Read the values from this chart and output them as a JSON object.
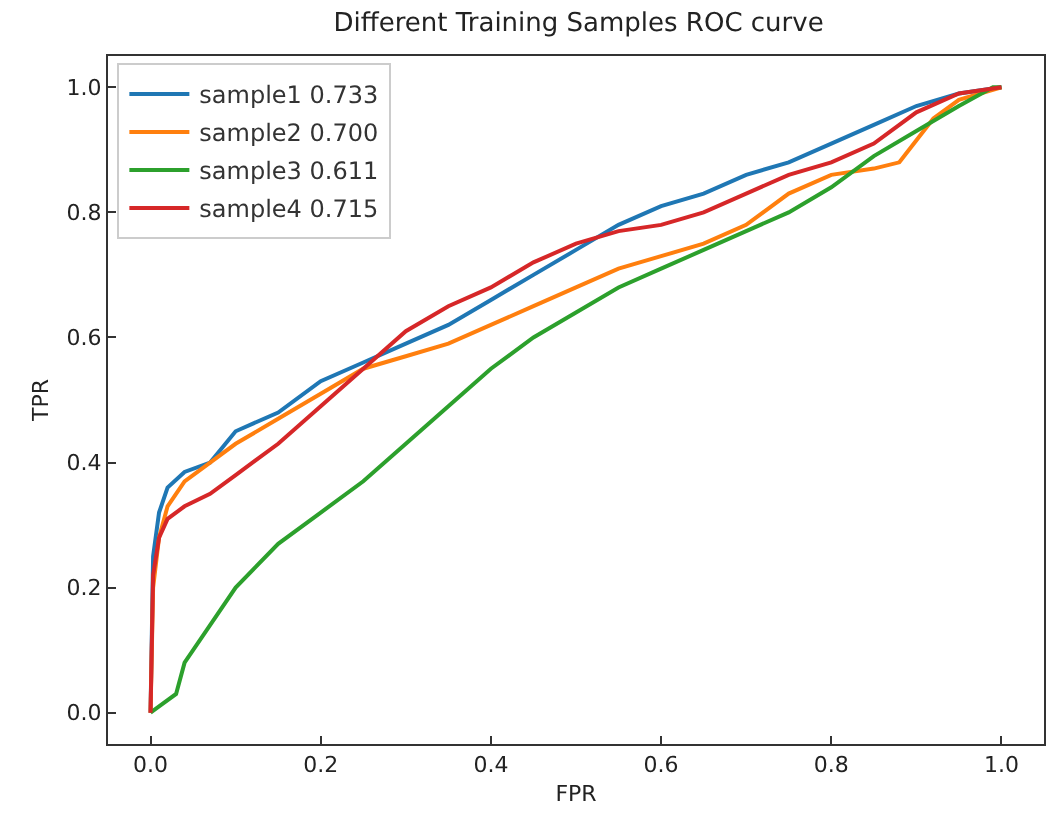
{
  "chart_data": {
    "type": "line",
    "title": "Different Training Samples ROC curve",
    "xlabel": "FPR",
    "ylabel": "TPR",
    "xlim": [
      -0.05,
      1.05
    ],
    "ylim": [
      -0.05,
      1.05
    ],
    "xticks": [
      {
        "value": 0,
        "label": "0.0"
      },
      0.2,
      0.4,
      0.6,
      0.8,
      {
        "value": 1,
        "label": "1.0"
      }
    ],
    "yticks": [
      {
        "value": 0,
        "label": "0.0"
      },
      0.2,
      0.4,
      0.6,
      0.8,
      {
        "value": 1,
        "label": "1.0"
      }
    ],
    "grid": false,
    "legend": "top left",
    "marker": "none",
    "line_style": "solid",
    "series": [
      {
        "name": "sample1 0.733",
        "color": "#1f77b4",
        "x": [
          0,
          0.003,
          0.01,
          0.02,
          0.04,
          0.07,
          0.1,
          0.15,
          0.2,
          0.25,
          0.3,
          0.35,
          0.4,
          0.45,
          0.5,
          0.55,
          0.6,
          0.65,
          0.7,
          0.75,
          0.8,
          0.85,
          0.9,
          0.95,
          1
        ],
        "values": [
          0,
          0.25,
          0.32,
          0.36,
          0.385,
          0.4,
          0.45,
          0.48,
          0.53,
          0.56,
          0.59,
          0.62,
          0.66,
          0.7,
          0.74,
          0.78,
          0.81,
          0.83,
          0.86,
          0.88,
          0.91,
          0.94,
          0.97,
          0.99,
          1
        ]
      },
      {
        "name": "sample2 0.700",
        "color": "#ff7f0e",
        "x": [
          0,
          0.003,
          0.01,
          0.02,
          0.04,
          0.07,
          0.1,
          0.15,
          0.2,
          0.25,
          0.3,
          0.35,
          0.4,
          0.45,
          0.5,
          0.55,
          0.6,
          0.65,
          0.7,
          0.73,
          0.75,
          0.8,
          0.85,
          0.88,
          0.92,
          0.95,
          1
        ],
        "values": [
          0,
          0.2,
          0.28,
          0.33,
          0.37,
          0.4,
          0.43,
          0.47,
          0.51,
          0.55,
          0.57,
          0.59,
          0.62,
          0.65,
          0.68,
          0.71,
          0.73,
          0.75,
          0.78,
          0.81,
          0.83,
          0.86,
          0.87,
          0.88,
          0.95,
          0.98,
          1
        ]
      },
      {
        "name": "sample3 0.611",
        "color": "#2ca02c",
        "x": [
          0,
          0.01,
          0.03,
          0.04,
          0.06,
          0.1,
          0.15,
          0.2,
          0.25,
          0.3,
          0.35,
          0.4,
          0.45,
          0.5,
          0.55,
          0.6,
          0.65,
          0.7,
          0.75,
          0.8,
          0.85,
          0.9,
          0.95,
          0.99,
          1
        ],
        "values": [
          0,
          0.01,
          0.03,
          0.08,
          0.12,
          0.2,
          0.27,
          0.32,
          0.37,
          0.43,
          0.49,
          0.55,
          0.6,
          0.64,
          0.68,
          0.71,
          0.74,
          0.77,
          0.8,
          0.84,
          0.89,
          0.93,
          0.97,
          1,
          1
        ]
      },
      {
        "name": "sample4 0.715",
        "color": "#d62728",
        "x": [
          0,
          0.003,
          0.01,
          0.02,
          0.04,
          0.07,
          0.1,
          0.15,
          0.2,
          0.25,
          0.3,
          0.35,
          0.4,
          0.45,
          0.5,
          0.55,
          0.6,
          0.65,
          0.7,
          0.75,
          0.8,
          0.85,
          0.9,
          0.95,
          1
        ],
        "values": [
          0,
          0.22,
          0.28,
          0.31,
          0.33,
          0.35,
          0.38,
          0.43,
          0.49,
          0.55,
          0.61,
          0.65,
          0.68,
          0.72,
          0.75,
          0.77,
          0.78,
          0.8,
          0.83,
          0.86,
          0.88,
          0.91,
          0.96,
          0.99,
          1
        ]
      }
    ]
  }
}
